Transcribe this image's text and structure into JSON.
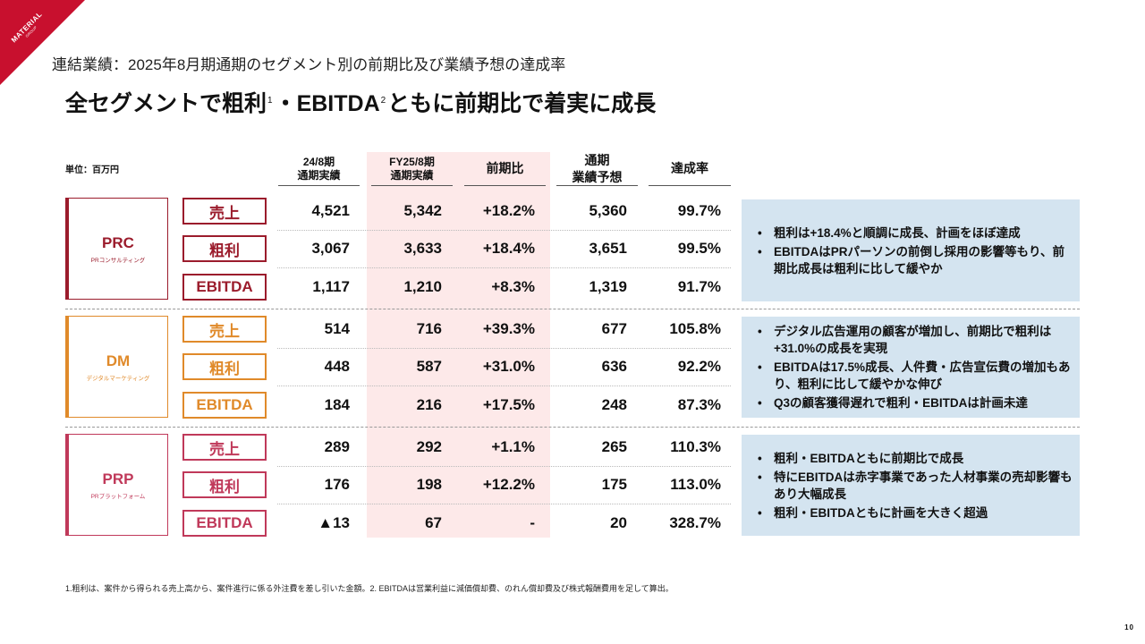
{
  "brand": {
    "logo_text": "MATERIAL",
    "logo_sub": "GROUP",
    "color": "#c8102e"
  },
  "subtitle": "連結業績：2025年8月期通期のセグメント別の前期比及び業績予想の達成率",
  "title": {
    "part1": "全セグメントで粗利",
    "sup1": "1",
    "part2": "・EBITDA",
    "sup2": "2",
    "part3": "ともに前期比で着実に成長"
  },
  "unit": "単位：百万円",
  "headers": {
    "prev_line1": "24/8期",
    "prev_line2": "通期実績",
    "fy_line1": "FY25/8期",
    "fy_line2": "通期実績",
    "yoy": "前期比",
    "forecast_line1": "通期",
    "forecast_line2": "業績予想",
    "achievement": "達成率"
  },
  "segments": [
    {
      "name": "PRC",
      "sub": "PRコンサルティング",
      "color": "#9b1c2c",
      "rows": [
        {
          "metric": "売上",
          "prev": "4,521",
          "fy": "5,342",
          "yoy": "+18.2%",
          "forecast": "5,360",
          "achievement": "99.7%"
        },
        {
          "metric": "粗利",
          "prev": "3,067",
          "fy": "3,633",
          "yoy": "+18.4%",
          "forecast": "3,651",
          "achievement": "99.5%"
        },
        {
          "metric": "EBITDA",
          "prev": "1,117",
          "fy": "1,210",
          "yoy": "+8.3%",
          "forecast": "1,319",
          "achievement": "91.7%"
        }
      ],
      "notes": [
        "粗利は+18.4%と順調に成長、計画をほぼ達成",
        "EBITDAはPRパーソンの前倒し採用の影響等もり、前期比成長は粗利に比して緩やか"
      ]
    },
    {
      "name": "DM",
      "sub": "デジタルマーケティング",
      "color": "#e08a2a",
      "rows": [
        {
          "metric": "売上",
          "prev": "514",
          "fy": "716",
          "yoy": "+39.3%",
          "forecast": "677",
          "achievement": "105.8%"
        },
        {
          "metric": "粗利",
          "prev": "448",
          "fy": "587",
          "yoy": "+31.0%",
          "forecast": "636",
          "achievement": "92.2%"
        },
        {
          "metric": "EBITDA",
          "prev": "184",
          "fy": "216",
          "yoy": "+17.5%",
          "forecast": "248",
          "achievement": "87.3%"
        }
      ],
      "notes": [
        "デジタル広告運用の顧客が増加し、前期比で粗利は+31.0%の成長を実現",
        "EBITDAは17.5%成長、人件費・広告宣伝費の増加もあり、粗利に比して緩やかな伸び",
        "Q3の顧客獲得遅れで粗利・EBITDAは計画未達"
      ]
    },
    {
      "name": "PRP",
      "sub": "PRプラットフォーム",
      "color": "#c0395a",
      "rows": [
        {
          "metric": "売上",
          "prev": "289",
          "fy": "292",
          "yoy": "+1.1%",
          "forecast": "265",
          "achievement": "110.3%"
        },
        {
          "metric": "粗利",
          "prev": "176",
          "fy": "198",
          "yoy": "+12.2%",
          "forecast": "175",
          "achievement": "113.0%"
        },
        {
          "metric": "EBITDA",
          "prev": "▲13",
          "fy": "67",
          "yoy": "-",
          "forecast": "20",
          "achievement": "328.7%"
        }
      ],
      "notes": [
        "粗利・EBITDAともに前期比で成長",
        "特にEBITDAは赤字事業であった人材事業の売却影響もあり大幅成長",
        "粗利・EBITDAともに計画を大きく超過"
      ]
    }
  ],
  "footnote": "1.粗利は、案件から得られる売上高から、案件進行に係る外注費を差し引いた金額。2. EBITDAは営業利益に減価償却費、のれん償却費及び株式報酬費用を足して算出。",
  "page_number": "10"
}
